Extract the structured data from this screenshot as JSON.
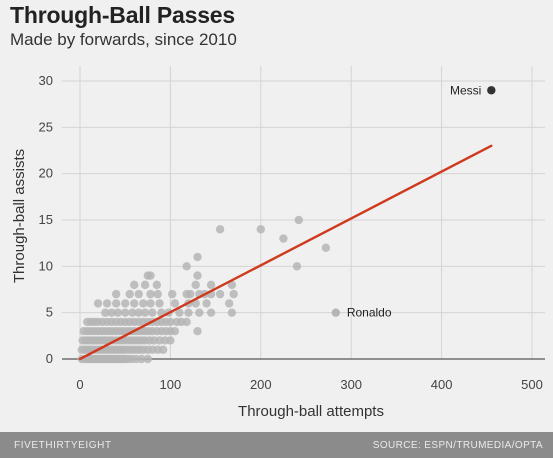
{
  "header": {
    "title": "Through-Ball Passes",
    "subtitle": "Made by forwards, since 2010"
  },
  "footer": {
    "brand": "FIVETHIRTYEIGHT",
    "source": "SOURCE: ESPN/TRUMEDIA/OPTA"
  },
  "chart_data": {
    "type": "scatter",
    "title": "Through-Ball Passes",
    "subtitle": "Made by forwards, since 2010",
    "xlabel": "Through-ball attempts",
    "ylabel": "Through-ball assists",
    "xlim": [
      0,
      500
    ],
    "ylim": [
      0,
      30
    ],
    "x_ticks": [
      0,
      100,
      200,
      300,
      400,
      500
    ],
    "y_ticks": [
      0,
      5,
      10,
      15,
      20,
      25,
      30
    ],
    "x_tick_labels": [
      "0",
      "100",
      "200",
      "300",
      "400",
      "500"
    ],
    "y_tick_labels": [
      "0",
      "5",
      "10",
      "15",
      "20",
      "25",
      "30"
    ],
    "grid": true,
    "colors": {
      "points": "#b5b5b5",
      "highlight": "#333333",
      "trend": "#cf3a1f",
      "grid": "#d4d4d4",
      "baseline": "#555555"
    },
    "trend_line": {
      "x": [
        0,
        455
      ],
      "y": [
        0,
        23
      ]
    },
    "annotations": [
      {
        "label": "Messi",
        "x": 455,
        "y": 29,
        "highlight": true
      },
      {
        "label": "Ronaldo",
        "x": 283,
        "y": 5,
        "highlight": false
      }
    ],
    "points": [
      [
        2,
        0
      ],
      [
        5,
        0
      ],
      [
        8,
        0
      ],
      [
        10,
        0
      ],
      [
        12,
        0
      ],
      [
        14,
        0
      ],
      [
        16,
        0
      ],
      [
        18,
        0
      ],
      [
        20,
        0
      ],
      [
        22,
        0
      ],
      [
        24,
        0
      ],
      [
        26,
        0
      ],
      [
        28,
        0
      ],
      [
        30,
        0
      ],
      [
        32,
        0
      ],
      [
        34,
        0
      ],
      [
        36,
        0
      ],
      [
        38,
        0
      ],
      [
        40,
        0
      ],
      [
        42,
        0
      ],
      [
        44,
        0
      ],
      [
        46,
        0
      ],
      [
        48,
        0
      ],
      [
        50,
        0
      ],
      [
        53,
        0
      ],
      [
        57,
        0
      ],
      [
        62,
        0
      ],
      [
        68,
        0
      ],
      [
        75,
        0
      ],
      [
        2,
        1
      ],
      [
        5,
        1
      ],
      [
        8,
        1
      ],
      [
        11,
        1
      ],
      [
        14,
        1
      ],
      [
        17,
        1
      ],
      [
        20,
        1
      ],
      [
        23,
        1
      ],
      [
        26,
        1
      ],
      [
        29,
        1
      ],
      [
        32,
        1
      ],
      [
        35,
        1
      ],
      [
        38,
        1
      ],
      [
        41,
        1
      ],
      [
        44,
        1
      ],
      [
        47,
        1
      ],
      [
        50,
        1
      ],
      [
        54,
        1
      ],
      [
        58,
        1
      ],
      [
        62,
        1
      ],
      [
        66,
        1
      ],
      [
        70,
        1
      ],
      [
        75,
        1
      ],
      [
        80,
        1
      ],
      [
        86,
        1
      ],
      [
        92,
        1
      ],
      [
        3,
        2
      ],
      [
        6,
        2
      ],
      [
        9,
        2
      ],
      [
        12,
        2
      ],
      [
        15,
        2
      ],
      [
        18,
        2
      ],
      [
        21,
        2
      ],
      [
        24,
        2
      ],
      [
        27,
        2
      ],
      [
        30,
        2
      ],
      [
        33,
        2
      ],
      [
        36,
        2
      ],
      [
        40,
        2
      ],
      [
        44,
        2
      ],
      [
        48,
        2
      ],
      [
        52,
        2
      ],
      [
        56,
        2
      ],
      [
        60,
        2
      ],
      [
        64,
        2
      ],
      [
        68,
        2
      ],
      [
        72,
        2
      ],
      [
        77,
        2
      ],
      [
        82,
        2
      ],
      [
        88,
        2
      ],
      [
        94,
        2
      ],
      [
        100,
        2
      ],
      [
        4,
        3
      ],
      [
        8,
        3
      ],
      [
        12,
        3
      ],
      [
        16,
        3
      ],
      [
        20,
        3
      ],
      [
        24,
        3
      ],
      [
        28,
        3
      ],
      [
        32,
        3
      ],
      [
        36,
        3
      ],
      [
        40,
        3
      ],
      [
        44,
        3
      ],
      [
        48,
        3
      ],
      [
        52,
        3
      ],
      [
        56,
        3
      ],
      [
        60,
        3
      ],
      [
        64,
        3
      ],
      [
        68,
        3
      ],
      [
        72,
        3
      ],
      [
        76,
        3
      ],
      [
        80,
        3
      ],
      [
        85,
        3
      ],
      [
        90,
        3
      ],
      [
        95,
        3
      ],
      [
        100,
        3
      ],
      [
        105,
        3
      ],
      [
        130,
        3
      ],
      [
        8,
        4
      ],
      [
        12,
        4
      ],
      [
        16,
        4
      ],
      [
        20,
        4
      ],
      [
        25,
        4
      ],
      [
        30,
        4
      ],
      [
        35,
        4
      ],
      [
        40,
        4
      ],
      [
        45,
        4
      ],
      [
        50,
        4
      ],
      [
        55,
        4
      ],
      [
        60,
        4
      ],
      [
        65,
        4
      ],
      [
        70,
        4
      ],
      [
        75,
        4
      ],
      [
        80,
        4
      ],
      [
        85,
        4
      ],
      [
        90,
        4
      ],
      [
        95,
        4
      ],
      [
        100,
        4
      ],
      [
        107,
        4
      ],
      [
        112,
        4
      ],
      [
        118,
        4
      ],
      [
        28,
        5
      ],
      [
        35,
        5
      ],
      [
        42,
        5
      ],
      [
        50,
        5
      ],
      [
        58,
        5
      ],
      [
        65,
        5
      ],
      [
        72,
        5
      ],
      [
        80,
        5
      ],
      [
        90,
        5
      ],
      [
        98,
        5
      ],
      [
        110,
        5
      ],
      [
        120,
        5
      ],
      [
        132,
        5
      ],
      [
        145,
        5
      ],
      [
        168,
        5
      ],
      [
        20,
        6
      ],
      [
        30,
        6
      ],
      [
        40,
        6
      ],
      [
        50,
        6
      ],
      [
        60,
        6
      ],
      [
        70,
        6
      ],
      [
        78,
        6
      ],
      [
        88,
        6
      ],
      [
        105,
        6
      ],
      [
        120,
        6
      ],
      [
        128,
        6
      ],
      [
        140,
        6
      ],
      [
        165,
        6
      ],
      [
        40,
        7
      ],
      [
        55,
        7
      ],
      [
        65,
        7
      ],
      [
        78,
        7
      ],
      [
        86,
        7
      ],
      [
        102,
        7
      ],
      [
        118,
        7
      ],
      [
        122,
        7
      ],
      [
        132,
        7
      ],
      [
        138,
        7
      ],
      [
        145,
        7
      ],
      [
        155,
        7
      ],
      [
        170,
        7
      ],
      [
        60,
        8
      ],
      [
        72,
        8
      ],
      [
        85,
        8
      ],
      [
        128,
        8
      ],
      [
        145,
        8
      ],
      [
        168,
        8
      ],
      [
        75,
        9
      ],
      [
        78,
        9
      ],
      [
        130,
        9
      ],
      [
        118,
        10
      ],
      [
        240,
        10
      ],
      [
        130,
        11
      ],
      [
        155,
        14
      ],
      [
        200,
        14
      ],
      [
        225,
        13
      ],
      [
        272,
        12
      ],
      [
        242,
        15
      ]
    ]
  }
}
